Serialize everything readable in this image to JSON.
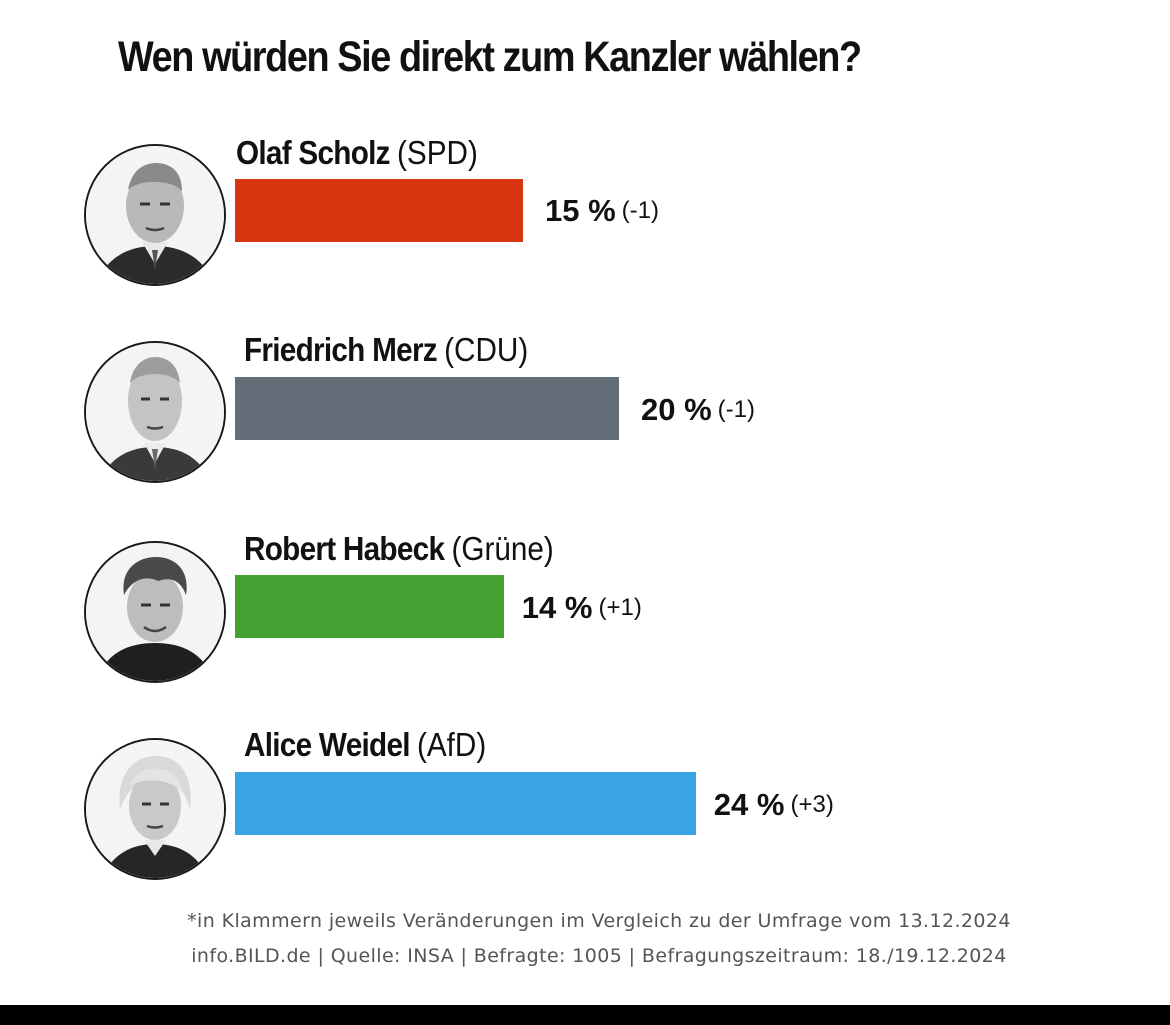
{
  "chart_data": {
    "type": "bar",
    "orientation": "horizontal",
    "title": "Wen würden Sie direkt zum Kanzler wählen?",
    "categories": [
      "Olaf Scholz",
      "Friedrich Merz",
      "Robert Habeck",
      "Alice Weidel"
    ],
    "values": [
      15,
      20,
      14,
      24
    ],
    "parties": [
      "(SPD)",
      "(CDU)",
      "(Grüne)",
      "(AfD)"
    ],
    "value_labels": [
      "15 %",
      "20 %",
      "14 %",
      "24 %"
    ],
    "changes": [
      "(-1)",
      "(-1)",
      "(+1)",
      "(+3)"
    ],
    "bar_colors": [
      "#d8340f",
      "#636d77",
      "#44a233",
      "#39a4e6"
    ],
    "unit": "%",
    "grid": false,
    "legend": "none"
  },
  "footer": {
    "note": "*in Klammern jeweils Veränderungen im Vergleich zu der Umfrage vom 13.12.2024",
    "source": "info.BILD.de | Quelle: INSA | Befragte: 1005 | Befragungszeitraum: 18./19.12.2024"
  },
  "icons": [
    "portrait-scholz-icon",
    "portrait-merz-icon",
    "portrait-habeck-icon",
    "portrait-weidel-icon"
  ]
}
